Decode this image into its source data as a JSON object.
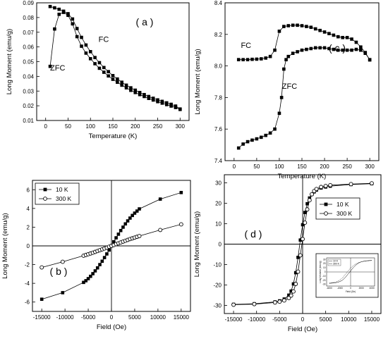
{
  "chart_data": [
    {
      "type": "scatter",
      "panel_label": "( a )",
      "xlabel": "Temperature (K)",
      "ylabel": "Long Moment (emu/g)",
      "xlim": [
        -20,
        320
      ],
      "ylim": [
        0.01,
        0.09
      ],
      "xticks": [
        0,
        50,
        100,
        150,
        200,
        250,
        300
      ],
      "yticks": [
        0.01,
        0.02,
        0.03,
        0.04,
        0.05,
        0.06,
        0.07,
        0.08,
        0.09
      ],
      "annotations": [
        {
          "text": "FC",
          "x": 118,
          "y": 0.0635
        },
        {
          "text": "ZFC",
          "x": 10,
          "y": 0.044
        }
      ],
      "series": [
        {
          "label": "FC",
          "marker": "square-filled",
          "x": [
            10,
            20,
            30,
            40,
            50,
            60,
            70,
            80,
            90,
            100,
            110,
            120,
            130,
            140,
            150,
            160,
            170,
            180,
            190,
            200,
            210,
            220,
            230,
            240,
            250,
            260,
            270,
            280,
            290,
            300
          ],
          "y": [
            0.0875,
            0.0866,
            0.0856,
            0.0843,
            0.0826,
            0.079,
            0.0725,
            0.0665,
            0.0613,
            0.0568,
            0.0528,
            0.0493,
            0.046,
            0.0432,
            0.0405,
            0.0382,
            0.036,
            0.034,
            0.0322,
            0.0306,
            0.029,
            0.0276,
            0.0263,
            0.0251,
            0.024,
            0.023,
            0.022,
            0.021,
            0.0198,
            0.0178
          ]
        },
        {
          "label": "ZFC",
          "marker": "square-filled",
          "x": [
            10,
            20,
            30,
            40,
            50,
            60,
            70,
            80,
            90,
            100,
            110,
            120,
            130,
            140,
            150,
            160,
            170,
            180,
            190,
            200,
            210,
            220,
            230,
            240,
            250,
            260,
            270,
            280,
            290,
            300
          ],
          "y": [
            0.0468,
            0.0722,
            0.0822,
            0.0835,
            0.0815,
            0.0757,
            0.067,
            0.0605,
            0.0558,
            0.052,
            0.0486,
            0.0455,
            0.0428,
            0.0403,
            0.038,
            0.036,
            0.034,
            0.0322,
            0.0305,
            0.029,
            0.0276,
            0.0263,
            0.025,
            0.0239,
            0.0228,
            0.0218,
            0.0208,
            0.0198,
            0.0188,
            0.0175
          ]
        }
      ]
    },
    {
      "type": "scatter",
      "panel_label": "( c )",
      "xlabel": "Temperature (K)",
      "ylabel": "Long Moment (emu/g)",
      "xlim": [
        -20,
        320
      ],
      "ylim": [
        7.4,
        8.4
      ],
      "xticks": [
        0,
        50,
        100,
        150,
        200,
        250,
        300
      ],
      "yticks": [
        7.4,
        7.6,
        7.8,
        8.0,
        8.2,
        8.4
      ],
      "annotations": [
        {
          "text": "FC",
          "x": 15,
          "y": 8.115
        },
        {
          "text": "ZFC",
          "x": 106,
          "y": 7.855
        }
      ],
      "series": [
        {
          "label": "FC",
          "marker": "square-filled",
          "x": [
            10,
            20,
            30,
            40,
            50,
            60,
            70,
            80,
            90,
            100,
            110,
            120,
            130,
            140,
            150,
            160,
            170,
            180,
            190,
            200,
            210,
            220,
            230,
            240,
            250,
            260,
            270,
            280,
            290,
            300
          ],
          "y": [
            8.04,
            8.04,
            8.04,
            8.042,
            8.043,
            8.045,
            8.05,
            8.06,
            8.1,
            8.22,
            8.25,
            8.255,
            8.258,
            8.258,
            8.255,
            8.25,
            8.245,
            8.235,
            8.225,
            8.215,
            8.205,
            8.195,
            8.185,
            8.18,
            8.18,
            8.17,
            8.15,
            8.12,
            8.085,
            8.038
          ]
        },
        {
          "label": "ZFC",
          "marker": "square-filled",
          "x": [
            10,
            20,
            30,
            40,
            50,
            60,
            70,
            80,
            90,
            100,
            105,
            110,
            115,
            120,
            130,
            140,
            150,
            160,
            170,
            180,
            190,
            200,
            210,
            220,
            230,
            240,
            250,
            260,
            270,
            280,
            290,
            300
          ],
          "y": [
            7.48,
            7.505,
            7.52,
            7.53,
            7.538,
            7.548,
            7.56,
            7.575,
            7.6,
            7.7,
            7.8,
            7.98,
            8.04,
            8.06,
            8.08,
            8.09,
            8.1,
            8.105,
            8.11,
            8.115,
            8.115,
            8.115,
            8.11,
            8.105,
            8.1,
            8.1,
            8.1,
            8.1,
            8.105,
            8.1,
            8.08,
            8.04
          ]
        }
      ]
    },
    {
      "type": "line",
      "panel_label": "( b )",
      "xlabel": "Field (Oe)",
      "ylabel": "Long Moment (emu/g)",
      "xlim": [
        -17000,
        17000
      ],
      "ylim": [
        -7,
        7
      ],
      "xticks": [
        -15000,
        -10000,
        -5000,
        0,
        5000,
        10000,
        15000
      ],
      "yticks": [
        -6,
        -4,
        -2,
        0,
        2,
        4,
        6
      ],
      "legend_position": "top-left",
      "series": [
        {
          "name": "10 K",
          "marker": "square-filled",
          "x": [
            -15000,
            -10500,
            -6000,
            -5500,
            -5000,
            -4500,
            -4000,
            -3500,
            -3000,
            -2500,
            -2000,
            -1500,
            -1000,
            -500,
            0,
            500,
            1000,
            1500,
            2000,
            2500,
            3000,
            3500,
            4000,
            4500,
            5000,
            5500,
            6000,
            10500,
            15000
          ],
          "y": [
            -5.7,
            -5.0,
            -3.9,
            -3.72,
            -3.5,
            -3.25,
            -2.97,
            -2.67,
            -2.35,
            -2.0,
            -1.64,
            -1.25,
            -0.86,
            -0.44,
            0.0,
            0.44,
            0.86,
            1.25,
            1.64,
            2.0,
            2.35,
            2.67,
            2.97,
            3.25,
            3.5,
            3.72,
            3.95,
            5.0,
            5.7
          ]
        },
        {
          "name": "300 K",
          "marker": "circle-open",
          "x": [
            -15000,
            -10500,
            -6000,
            -5500,
            -5000,
            -4500,
            -4000,
            -3500,
            -3000,
            -2500,
            -2000,
            -1500,
            -1000,
            -500,
            0,
            500,
            1000,
            1500,
            2000,
            2500,
            3000,
            3500,
            4000,
            4500,
            5000,
            5500,
            6000,
            10500,
            15000
          ],
          "y": [
            -2.3,
            -1.7,
            -1.05,
            -0.97,
            -0.89,
            -0.81,
            -0.73,
            -0.64,
            -0.55,
            -0.46,
            -0.37,
            -0.28,
            -0.19,
            -0.09,
            0.0,
            0.09,
            0.19,
            0.28,
            0.37,
            0.46,
            0.55,
            0.64,
            0.73,
            0.81,
            0.89,
            0.97,
            1.05,
            1.7,
            2.3
          ]
        }
      ]
    },
    {
      "type": "line",
      "panel_label": "( d )",
      "xlabel": "Field (Oe)",
      "ylabel": "Long Moment (emu/g)",
      "xlim": [
        -17000,
        17000
      ],
      "ylim": [
        -34,
        34
      ],
      "xticks": [
        -15000,
        -10000,
        -5000,
        0,
        5000,
        10000,
        15000
      ],
      "yticks": [
        -30,
        -20,
        -10,
        0,
        10,
        20,
        30
      ],
      "legend_position": "top-right",
      "series": [
        {
          "name": "10 K",
          "marker": "square-filled",
          "x": [
            -15000,
            -10500,
            -6000,
            -5000,
            -4000,
            -3000,
            -2500,
            -2000,
            -1500,
            -1000,
            -500,
            0,
            500,
            1000,
            1500,
            2000,
            2500,
            3000,
            4000,
            5000,
            6000,
            10500,
            15000
          ],
          "y": [
            -29.5,
            -29.2,
            -28.3,
            -27.8,
            -26.9,
            -25.0,
            -23.0,
            -19.5,
            -14.0,
            -6.5,
            2.0,
            9.5,
            15.5,
            19.8,
            22.6,
            24.4,
            25.6,
            26.5,
            27.5,
            28.0,
            28.4,
            29.2,
            29.6
          ]
        },
        {
          "name": "300 K",
          "marker": "circle-open",
          "x": [
            -15000,
            -10500,
            -6000,
            -5000,
            -4000,
            -3000,
            -2500,
            -2000,
            -1500,
            -1000,
            -500,
            0,
            500,
            1000,
            1500,
            2000,
            2500,
            3000,
            4000,
            5000,
            6000,
            10500,
            15000
          ],
          "y": [
            -29.7,
            -29.4,
            -28.6,
            -28.2,
            -27.6,
            -26.4,
            -25.2,
            -23.2,
            -19.5,
            -13.5,
            -5.5,
            2.5,
            10.5,
            17.0,
            21.5,
            24.4,
            26.0,
            27.0,
            28.0,
            28.5,
            28.9,
            29.4,
            29.8
          ]
        }
      ],
      "inset": {
        "type": "line",
        "xlabel": "Field (Oe)",
        "ylabel": "Long Moment (emu/g)",
        "xlim": [
          -4500,
          4500
        ],
        "ylim": [
          -34,
          34
        ],
        "xticks": [
          -4000,
          -2000,
          0,
          2000,
          4000
        ],
        "yticks": [
          -30,
          -20,
          -10,
          0,
          10,
          20,
          30
        ],
        "legend": [
          "10 K",
          "300 K"
        ]
      }
    }
  ]
}
